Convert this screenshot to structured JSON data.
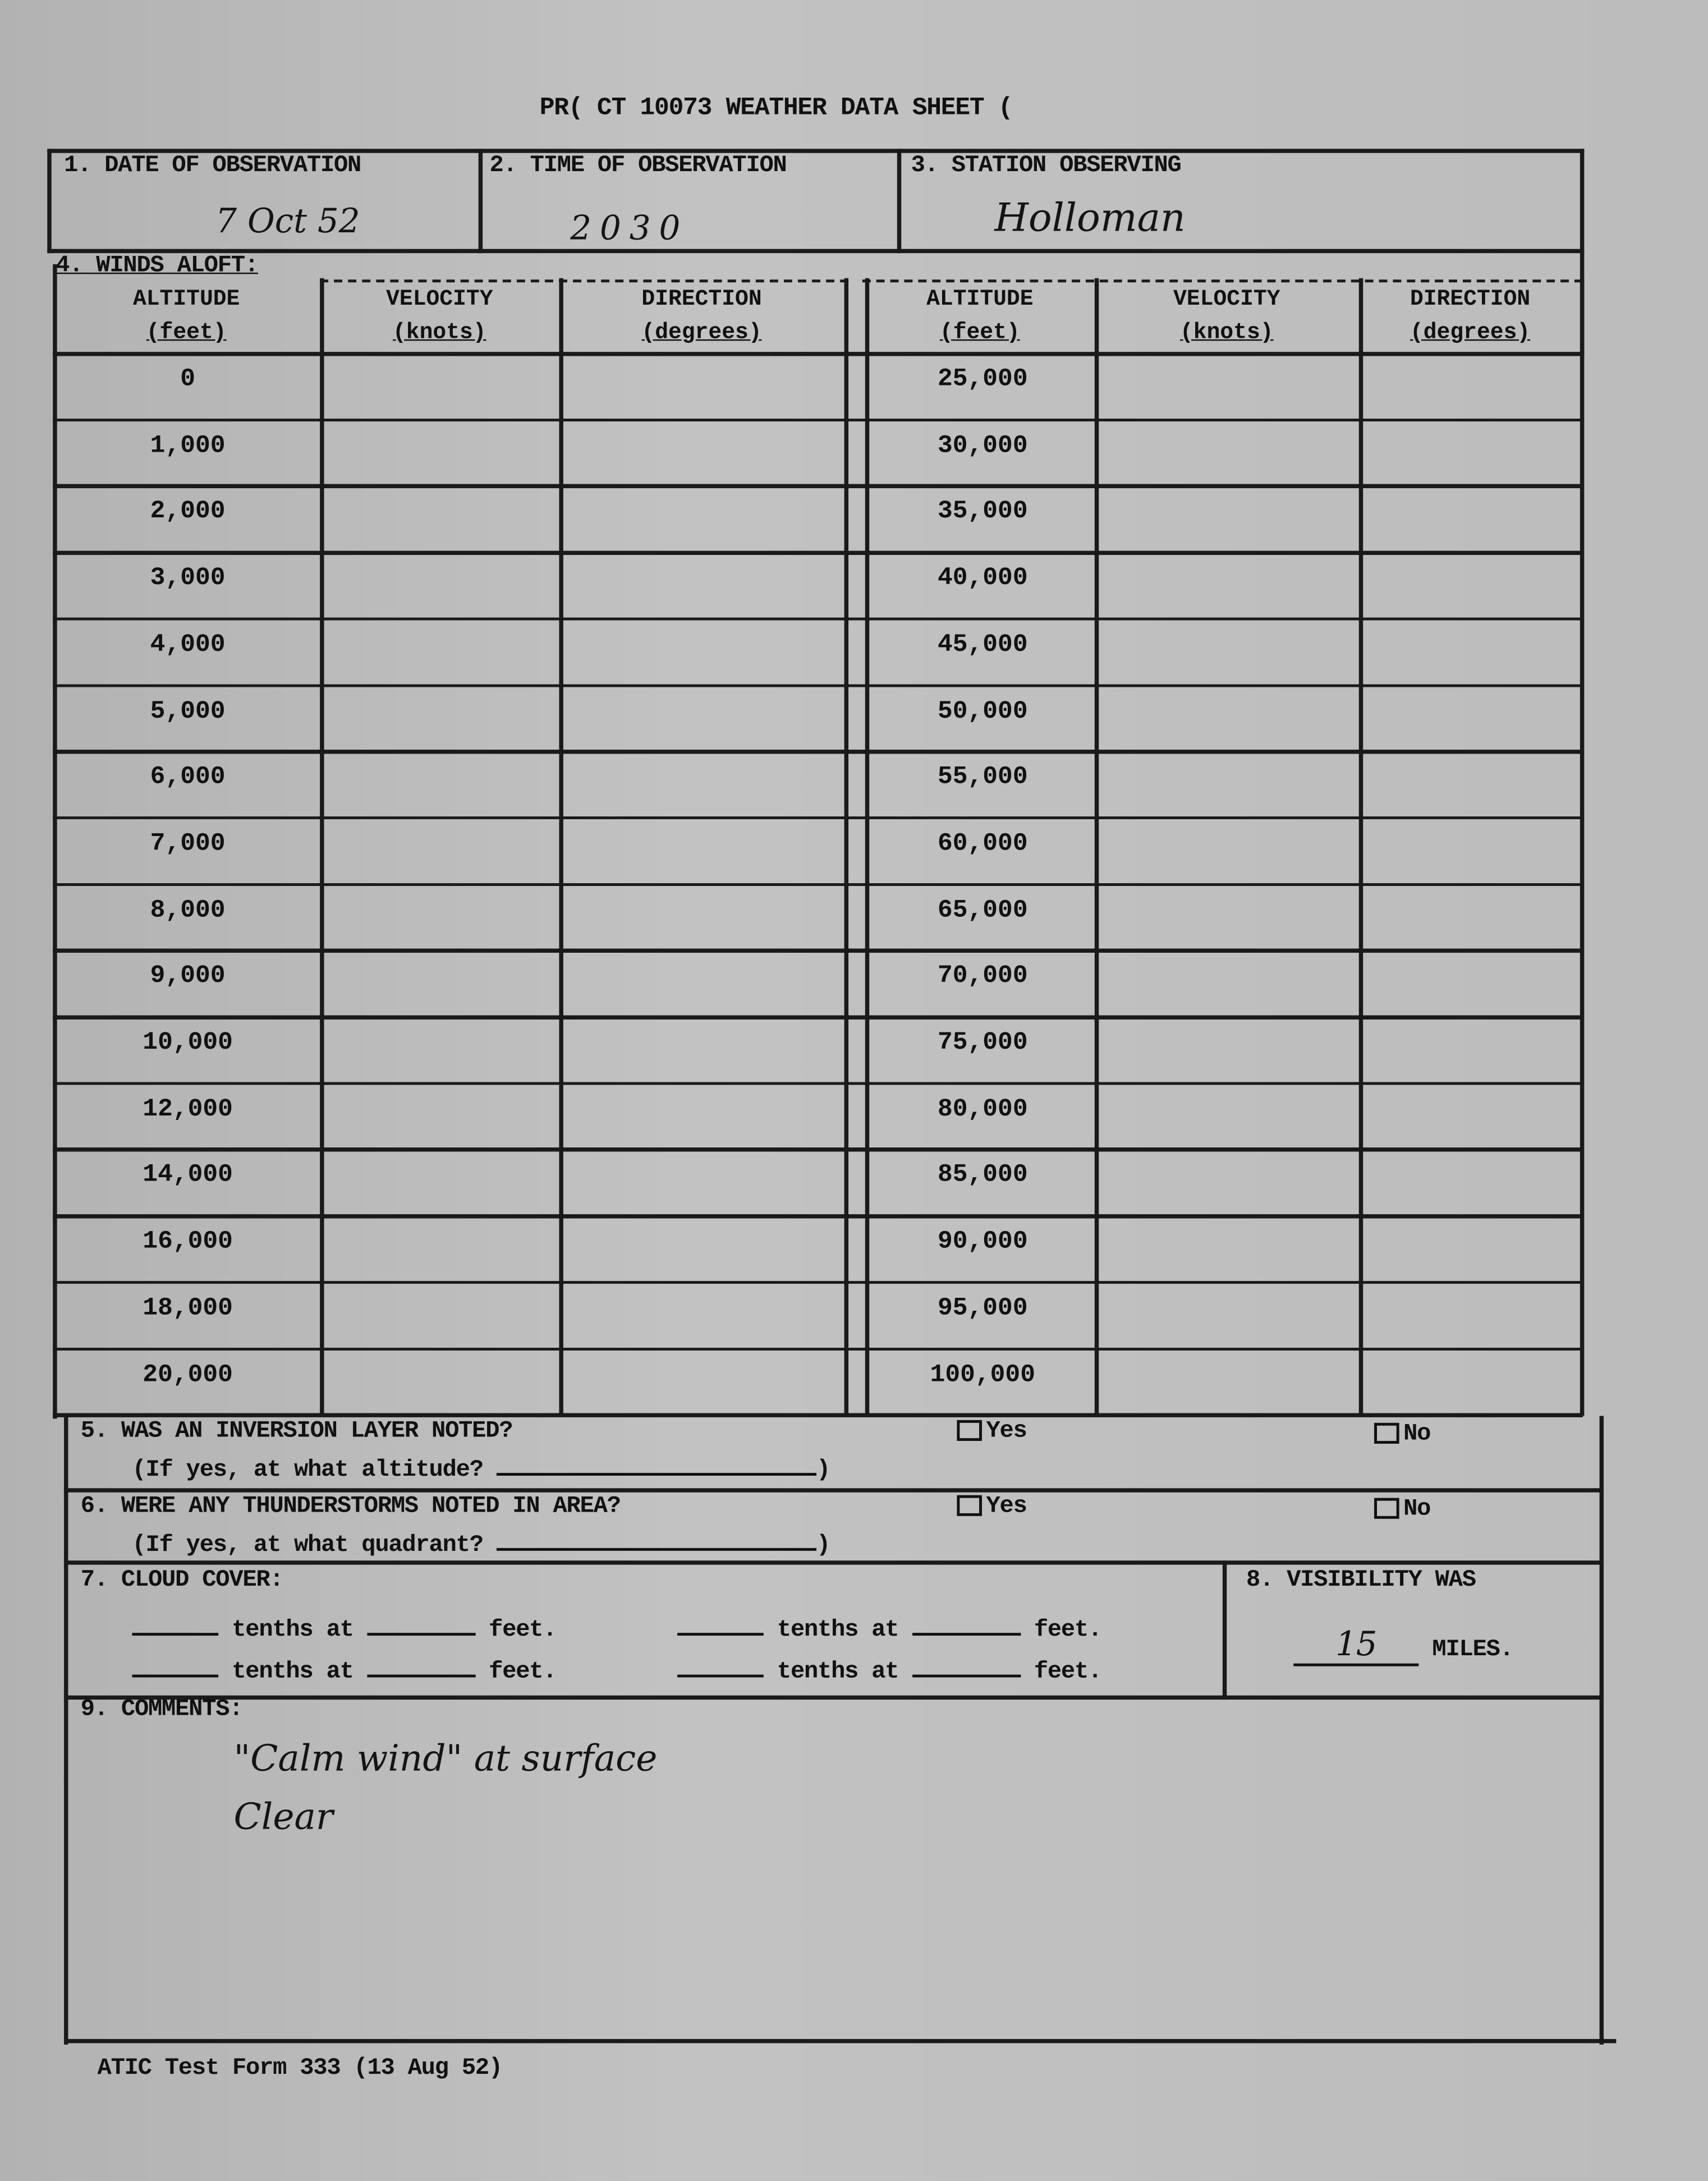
{
  "title": "PR( CT 10073 WEATHER DATA SHEET (",
  "fields": {
    "date": {
      "label": "1. DATE OF OBSERVATION",
      "value": "7 Oct 52"
    },
    "time": {
      "label": "2. TIME OF OBSERVATION",
      "value": "2030"
    },
    "station": {
      "label": "3. STATION OBSERVING",
      "value": "Holloman"
    }
  },
  "winds": {
    "label": "4. WINDS ALOFT:",
    "headers": {
      "altitude": "ALTITUDE",
      "altitude_unit": "(feet)",
      "velocity": "VELOCITY",
      "velocity_unit": "(knots)",
      "direction": "DIRECTION",
      "direction_unit": "(degrees)"
    },
    "left_altitudes": [
      "0",
      "1,000",
      "2,000",
      "3,000",
      "4,000",
      "5,000",
      "6,000",
      "7,000",
      "8,000",
      "9,000",
      "10,000",
      "12,000",
      "14,000",
      "16,000",
      "18,000",
      "20,000"
    ],
    "right_altitudes": [
      "25,000",
      "30,000",
      "35,000",
      "40,000",
      "45,000",
      "50,000",
      "55,000",
      "60,000",
      "65,000",
      "70,000",
      "75,000",
      "80,000",
      "85,000",
      "90,000",
      "95,000",
      "100,000"
    ]
  },
  "q5": {
    "question": "5. WAS AN INVERSION LAYER NOTED?",
    "sub": "(If yes, at what altitude?",
    "close": ")",
    "yes": "Yes",
    "no": "No"
  },
  "q6": {
    "question": "6. WERE ANY THUNDERSTORMS NOTED IN AREA?",
    "sub": "(If yes, at what quadrant?",
    "close": ")",
    "yes": "Yes",
    "no": "No"
  },
  "q7": {
    "label": "7. CLOUD COVER:",
    "tenths": "tenths at",
    "feet": "feet."
  },
  "q8": {
    "label": "8. VISIBILITY WAS",
    "value": "15",
    "unit": "MILES."
  },
  "q9": {
    "label": "9. COMMENTS:",
    "lines": [
      "\"Calm wind\" at surface",
      "Clear"
    ]
  },
  "footer": "ATIC Test Form 333 (13 Aug 52)"
}
